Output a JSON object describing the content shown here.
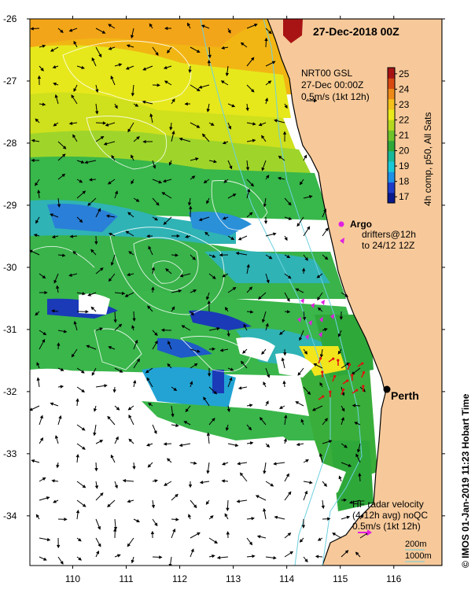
{
  "title": "27-Dec-2018 00Z",
  "product": {
    "line1": "NRT00 GSL",
    "line2": "27-Dec 00:00Z",
    "line3": "0.5m/s (1kt 12h)"
  },
  "colorbar": {
    "label": "4h comp, p50, All Sats",
    "ticks": [
      25,
      24,
      23,
      22,
      21,
      20,
      19,
      18,
      17
    ],
    "min": 16.6,
    "max": 25.4,
    "colors": [
      "#0a1a8c",
      "#1f3cc8",
      "#1e90e8",
      "#19c8d8",
      "#18b89a",
      "#2fa83a",
      "#6ec22a",
      "#b6d81e",
      "#eaea1a",
      "#f4c21a",
      "#ee8a18",
      "#d84a12",
      "#a81414"
    ]
  },
  "argo": {
    "label": "Argo",
    "drifters_line1": "drifters@12h",
    "drifters_line2": "to 24/12 12Z",
    "color": "#e020e0"
  },
  "city": {
    "name": "Perth"
  },
  "hf_radar": {
    "line1": "HF radar velocity",
    "line2": "(4-12h avg) noQC",
    "line3": "0.5m/s (1kt 12h)",
    "color": "#e020e0"
  },
  "depth_legend": {
    "label_200": "200m",
    "label_1000": "1000m",
    "color_200": "#6ed0e0",
    "color_1000": "#6ed0e0"
  },
  "credit": "©  IMOS 01-Jan-2019 11:23 Hobart Time",
  "axes": {
    "lat_ticks": [
      -26,
      -27,
      -28,
      -29,
      -30,
      -31,
      -32,
      -33,
      -34
    ],
    "lon_ticks": [
      110,
      111,
      112,
      113,
      114,
      115,
      116
    ],
    "lat_range": [
      -34.8,
      -26.0
    ],
    "lon_range": [
      109.2,
      116.9
    ]
  },
  "colors": {
    "land": "#f7c99a",
    "coast": "#000000",
    "contour": "#ffffff"
  }
}
